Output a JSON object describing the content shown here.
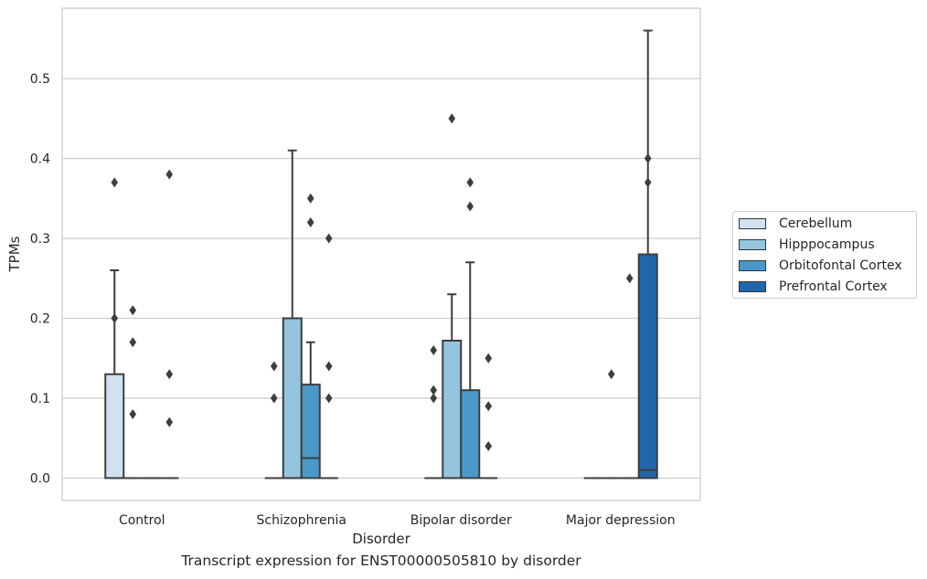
{
  "chart_data": {
    "type": "box",
    "xlabel": "Disorder",
    "ylabel": "TPMs",
    "ylim": [
      -0.028,
      0.588
    ],
    "yticks": [
      0.0,
      0.1,
      0.2,
      0.3,
      0.4,
      0.5
    ],
    "ytick_labels": [
      "0.0",
      "0.1",
      "0.2",
      "0.3",
      "0.4",
      "0.5"
    ],
    "grid": "horizontal",
    "legend_position": "right",
    "categories": [
      "Control",
      "Schizophrenia",
      "Bipolar disorder",
      "Major depression"
    ],
    "series": [
      {
        "name": "Cerebellum",
        "color": "#d0e1f2",
        "boxes": [
          {
            "category": "Control",
            "q1": 0.0,
            "median": 0.0,
            "q3": 0.13,
            "whisker_low": 0.0,
            "whisker_high": 0.26,
            "outliers": [
              0.37,
              0.2
            ]
          },
          {
            "category": "Schizophrenia",
            "q1": 0.0,
            "median": 0.0,
            "q3": 0.0,
            "whisker_low": 0.0,
            "whisker_high": 0.0,
            "outliers": [
              0.14,
              0.1
            ]
          },
          {
            "category": "Bipolar disorder",
            "q1": 0.0,
            "median": 0.0,
            "q3": 0.0,
            "whisker_low": 0.0,
            "whisker_high": 0.0,
            "outliers": [
              0.16,
              0.11,
              0.1
            ]
          },
          {
            "category": "Major depression",
            "q1": 0.0,
            "median": 0.0,
            "q3": 0.0,
            "whisker_low": 0.0,
            "whisker_high": 0.0,
            "outliers": []
          }
        ]
      },
      {
        "name": "Hipppocampus",
        "color": "#94c4df",
        "boxes": [
          {
            "category": "Control",
            "q1": 0.0,
            "median": 0.0,
            "q3": 0.0,
            "whisker_low": 0.0,
            "whisker_high": 0.0,
            "outliers": [
              0.21,
              0.17,
              0.08
            ]
          },
          {
            "category": "Schizophrenia",
            "q1": 0.0,
            "median": 0.0,
            "q3": 0.2,
            "whisker_low": 0.0,
            "whisker_high": 0.41,
            "outliers": []
          },
          {
            "category": "Bipolar disorder",
            "q1": 0.0,
            "median": 0.0,
            "q3": 0.172,
            "whisker_low": 0.0,
            "whisker_high": 0.23,
            "outliers": [
              0.45
            ]
          },
          {
            "category": "Major depression",
            "q1": 0.0,
            "median": 0.0,
            "q3": 0.0,
            "whisker_low": 0.0,
            "whisker_high": 0.0,
            "outliers": [
              0.13
            ]
          }
        ]
      },
      {
        "name": "Orbitofontal Cortex",
        "color": "#4a98c9",
        "boxes": [
          {
            "category": "Control",
            "q1": 0.0,
            "median": 0.0,
            "q3": 0.0,
            "whisker_low": 0.0,
            "whisker_high": 0.0,
            "outliers": []
          },
          {
            "category": "Schizophrenia",
            "q1": 0.0,
            "median": 0.025,
            "q3": 0.117,
            "whisker_low": 0.0,
            "whisker_high": 0.17,
            "outliers": [
              0.35,
              0.32
            ]
          },
          {
            "category": "Bipolar disorder",
            "q1": 0.0,
            "median": 0.0,
            "q3": 0.11,
            "whisker_low": 0.0,
            "whisker_high": 0.27,
            "outliers": [
              0.37,
              0.34
            ]
          },
          {
            "category": "Major depression",
            "q1": 0.0,
            "median": 0.0,
            "q3": 0.0,
            "whisker_low": 0.0,
            "whisker_high": 0.0,
            "outliers": [
              0.25
            ]
          }
        ]
      },
      {
        "name": "Prefrontal Cortex",
        "color": "#2166ac",
        "boxes": [
          {
            "category": "Control",
            "q1": 0.0,
            "median": 0.0,
            "q3": 0.0,
            "whisker_low": 0.0,
            "whisker_high": 0.0,
            "outliers": [
              0.38,
              0.13,
              0.07
            ]
          },
          {
            "category": "Schizophrenia",
            "q1": 0.0,
            "median": 0.0,
            "q3": 0.0,
            "whisker_low": 0.0,
            "whisker_high": 0.0,
            "outliers": [
              0.3,
              0.14,
              0.1
            ]
          },
          {
            "category": "Bipolar disorder",
            "q1": 0.0,
            "median": 0.0,
            "q3": 0.0,
            "whisker_low": 0.0,
            "whisker_high": 0.0,
            "outliers": [
              0.15,
              0.09,
              0.04
            ]
          },
          {
            "category": "Major depression",
            "q1": 0.0,
            "median": 0.01,
            "q3": 0.28,
            "whisker_low": 0.0,
            "whisker_high": 0.56,
            "outliers": [
              0.4,
              0.37
            ]
          }
        ]
      }
    ],
    "caption": "Transcript expression for ENST00000505810 by disorder"
  }
}
